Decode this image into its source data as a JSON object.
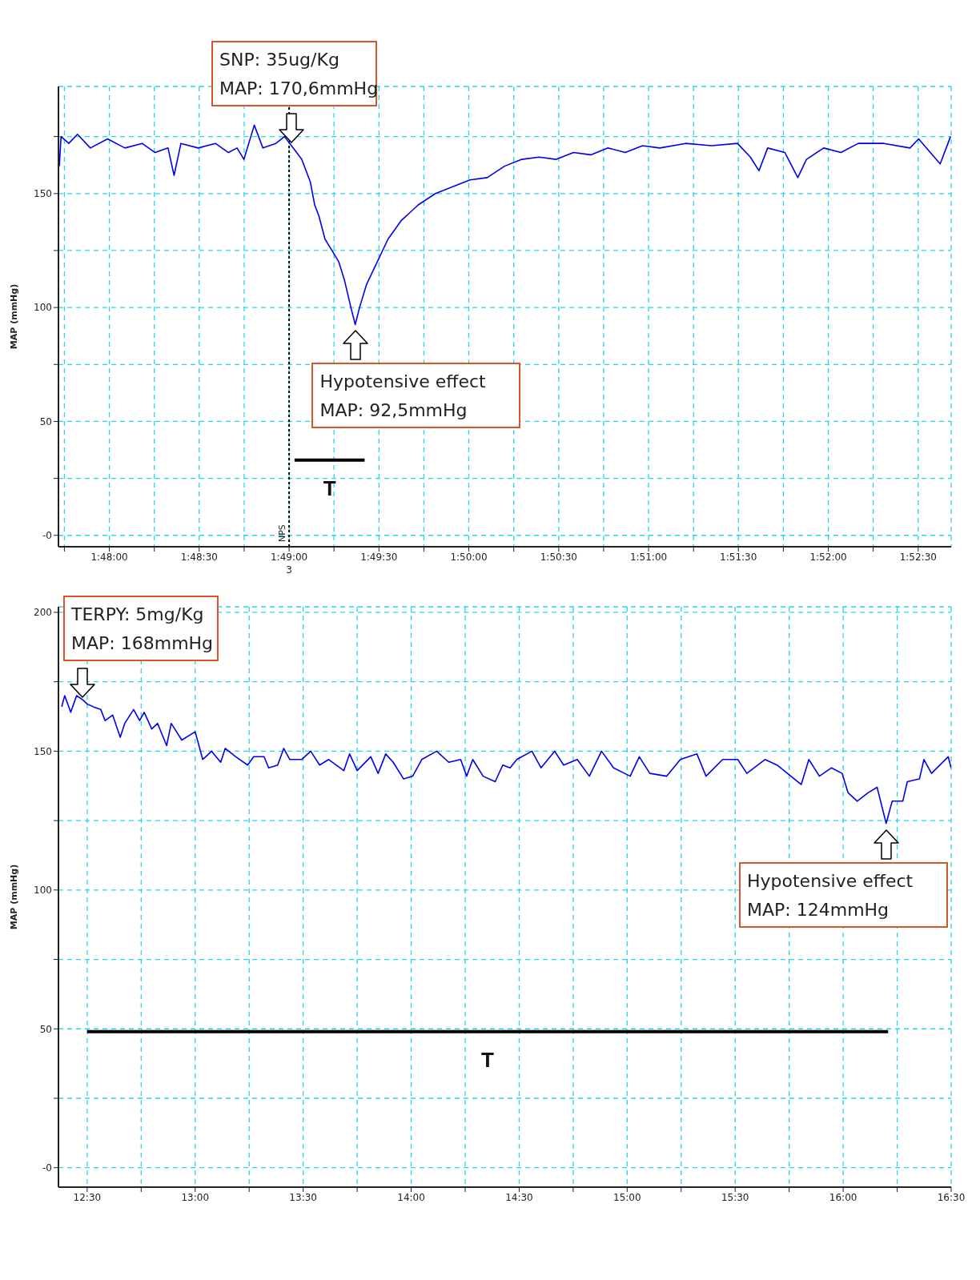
{
  "chart_data": [
    {
      "type": "line",
      "ylabel": "MAP (mmHg)",
      "xlim": [
        1.79528,
        1.87806
      ],
      "ylim": [
        -5,
        197
      ],
      "xticks": [
        {
          "value": 1.79583,
          "label": null
        },
        {
          "value": 1.8,
          "label": "1:48:00"
        },
        {
          "value": 1.80417,
          "label": null
        },
        {
          "value": 1.80833,
          "label": "1:48:30"
        },
        {
          "value": 1.8125,
          "label": null
        },
        {
          "value": 1.81667,
          "label": "1:49:00"
        },
        {
          "value": 1.82083,
          "label": null
        },
        {
          "value": 1.825,
          "label": "1:49:30"
        },
        {
          "value": 1.82917,
          "label": null
        },
        {
          "value": 1.83333,
          "label": "1:50:00"
        },
        {
          "value": 1.8375,
          "label": null
        },
        {
          "value": 1.84167,
          "label": "1:50:30"
        },
        {
          "value": 1.84583,
          "label": null
        },
        {
          "value": 1.85,
          "label": "1:51:00"
        },
        {
          "value": 1.85417,
          "label": null
        },
        {
          "value": 1.85833,
          "label": "1:51:30"
        },
        {
          "value": 1.8625,
          "label": null
        },
        {
          "value": 1.86667,
          "label": "1:52:00"
        },
        {
          "value": 1.87083,
          "label": null
        },
        {
          "value": 1.875,
          "label": "1:52:30"
        }
      ],
      "yticks": [
        {
          "value": 0,
          "label": "-0"
        },
        {
          "value": 25,
          "label": null
        },
        50,
        {
          "value": 75,
          "label": null
        },
        100,
        {
          "value": 125,
          "label": null
        },
        150,
        {
          "value": 175,
          "label": null
        }
      ],
      "grid": true,
      "series": [
        {
          "color": "#0000ee",
          "x": [
            1.79536,
            1.79552,
            1.79624,
            1.79704,
            1.79824,
            1.79984,
            1.80144,
            1.80304,
            1.80424,
            1.80544,
            1.806,
            1.80664,
            1.80824,
            1.80984,
            1.81104,
            1.81184,
            1.81248,
            1.81344,
            1.81424,
            1.81544,
            1.81624,
            1.81704,
            1.81784,
            1.81864,
            1.81904,
            1.81944,
            1.82,
            1.82064,
            1.82128,
            1.8218,
            1.8224,
            1.8228,
            1.8232,
            1.82384,
            1.82464,
            1.82584,
            1.82704,
            1.82864,
            1.83024,
            1.83184,
            1.83344,
            1.83504,
            1.83664,
            1.83824,
            1.83984,
            1.84144,
            1.84304,
            1.84464,
            1.84624,
            1.84784,
            1.84944,
            1.85104,
            1.85344,
            1.85584,
            1.85824,
            1.85944,
            1.86024,
            1.86104,
            1.86264,
            1.86384,
            1.86464,
            1.86624,
            1.86784,
            1.86944,
            1.87184,
            1.87424,
            1.87504,
            1.87704,
            1.878
          ],
          "values": [
            162,
            175,
            172,
            176,
            170,
            174,
            170,
            172,
            168,
            170,
            158,
            172,
            170,
            172,
            168,
            170,
            165,
            180,
            170,
            172,
            175,
            170,
            165,
            155,
            145,
            140,
            130,
            125,
            120,
            112,
            100,
            92.5,
            100,
            110,
            118,
            130,
            138,
            145,
            150,
            153,
            156,
            157,
            162,
            165,
            166,
            165,
            168,
            167,
            170,
            168,
            171,
            170,
            172,
            171,
            172,
            166,
            160,
            170,
            168,
            157,
            165,
            170,
            168,
            172,
            172,
            170,
            174,
            163,
            175
          ]
        },
        {
          "color": "#000000",
          "x": [
            1.81717,
            1.82367
          ],
          "values": [
            33,
            33
          ]
        }
      ],
      "ref_lines": [
        {
          "axis": "x",
          "value": 1.81667,
          "label": "NPS",
          "line_style": "dotted",
          "color": "#000000"
        }
      ],
      "annotations": [
        {
          "text": "SNP: 35ug/Kg\nMAP: 170,6mmHg",
          "x": 1.81689,
          "y": 170.6
        },
        {
          "text": "Hypotensive effect\nMAP: 92,5mmHg",
          "x": 1.82286,
          "y": 92.5
        },
        "T",
        "3"
      ]
    },
    {
      "type": "line",
      "ylabel": "MAP (mmHg)",
      "xlim": [
        12.367,
        16.5
      ],
      "ylim": [
        -7,
        202
      ],
      "xticks": [
        {
          "value": 12.5,
          "label": "12:30"
        },
        {
          "value": 12.75,
          "label": null
        },
        {
          "value": 13,
          "label": "13:00"
        },
        {
          "value": 13.25,
          "label": null
        },
        {
          "value": 13.5,
          "label": "13:30"
        },
        {
          "value": 13.75,
          "label": null
        },
        {
          "value": 14,
          "label": "14:00"
        },
        {
          "value": 14.25,
          "label": null
        },
        {
          "value": 14.5,
          "label": "14:30"
        },
        {
          "value": 14.75,
          "label": null
        },
        {
          "value": 15,
          "label": "15:00"
        },
        {
          "value": 15.25,
          "label": null
        },
        {
          "value": 15.5,
          "label": "15:30"
        },
        {
          "value": 15.75,
          "label": null
        },
        {
          "value": 16,
          "label": "16:00"
        },
        {
          "value": 16.25,
          "label": null
        },
        {
          "value": 16.5,
          "label": "16:30"
        }
      ],
      "yticks": [
        {
          "value": 0,
          "label": "-0"
        },
        {
          "value": 25,
          "label": null
        },
        50,
        {
          "value": 75,
          "label": null
        },
        100,
        {
          "value": 125,
          "label": null
        },
        150,
        {
          "value": 175,
          "label": null
        },
        200
      ],
      "grid": true,
      "series": [
        {
          "color": "#0000ee",
          "x": [
            12.382,
            12.396,
            12.424,
            12.451,
            12.479,
            12.5,
            12.528,
            12.563,
            12.583,
            12.618,
            12.653,
            12.674,
            12.715,
            12.743,
            12.764,
            12.799,
            12.826,
            12.868,
            12.889,
            12.938,
            13.0,
            13.035,
            13.076,
            13.118,
            13.139,
            13.188,
            13.243,
            13.271,
            13.319,
            13.34,
            13.382,
            13.41,
            13.438,
            13.493,
            13.535,
            13.576,
            13.618,
            13.688,
            13.715,
            13.75,
            13.813,
            13.847,
            13.882,
            13.917,
            13.965,
            14.007,
            14.049,
            14.118,
            14.174,
            14.229,
            14.257,
            14.285,
            14.333,
            14.389,
            14.424,
            14.458,
            14.489,
            14.559,
            14.601,
            14.664,
            14.706,
            14.769,
            14.825,
            14.881,
            14.937,
            15.014,
            15.056,
            15.105,
            15.183,
            15.246,
            15.323,
            15.365,
            15.442,
            15.512,
            15.554,
            15.638,
            15.694,
            15.806,
            15.841,
            15.89,
            15.946,
            15.995,
            16.023,
            16.065,
            16.115,
            16.157,
            16.199,
            16.227,
            16.276,
            16.297,
            16.353,
            16.374,
            16.409,
            16.486,
            16.5
          ],
          "values": [
            166,
            170,
            164,
            170,
            168.5,
            167,
            166,
            165,
            161,
            163,
            155,
            160,
            165,
            161,
            164,
            158,
            160,
            152,
            160,
            154,
            157,
            147,
            150,
            146,
            151,
            148,
            145,
            148,
            148,
            144,
            145,
            151,
            147,
            147,
            150,
            145,
            147,
            143,
            149,
            143,
            148,
            142,
            149,
            146,
            140,
            141,
            147,
            150,
            146,
            147,
            141,
            147,
            141,
            139,
            145,
            144,
            147,
            150,
            144,
            150,
            145,
            147,
            141,
            150,
            144,
            141,
            148,
            142,
            141,
            147,
            149,
            141,
            147,
            147,
            142,
            147,
            145,
            138,
            147,
            141,
            144,
            142,
            135,
            132,
            135,
            137,
            124,
            132,
            132,
            139,
            140,
            147,
            142,
            148,
            144
          ]
        },
        {
          "color": "#000000",
          "x": [
            12.5,
            16.208
          ],
          "values": [
            49,
            49
          ]
        }
      ],
      "annotations": [
        {
          "text": "TERPY: 5mg/Kg\nMAP: 168mmHg",
          "x": 12.479,
          "y": 168
        },
        {
          "text": "Hypotensive effect\nMAP: 124mmHg",
          "x": 16.199,
          "y": 124
        },
        "T"
      ]
    }
  ]
}
